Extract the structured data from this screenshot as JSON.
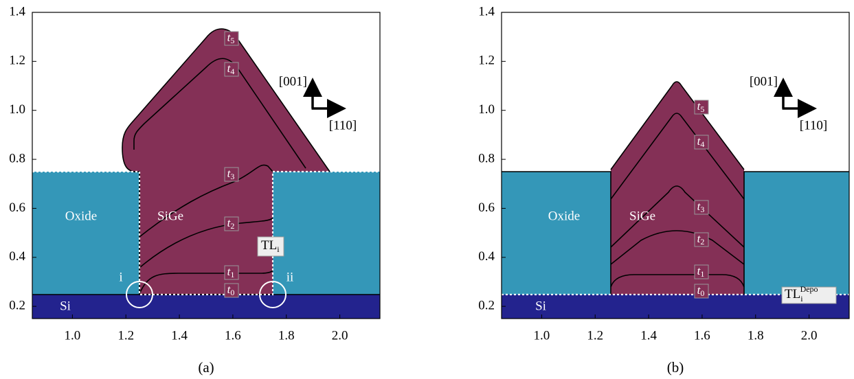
{
  "panels": [
    {
      "caption": "(a)",
      "xlim": [
        0.85,
        2.15
      ],
      "ylim": [
        0.15,
        1.4
      ],
      "xticks": [
        {
          "value": 1,
          "label": "1.0"
        },
        1.2,
        1.4,
        1.6,
        1.8,
        {
          "value": 2,
          "label": "2.0"
        }
      ],
      "yticks": [
        0.2,
        0.4,
        0.6,
        0.8,
        {
          "value": 1,
          "label": "1.0"
        },
        1.2,
        1.4
      ],
      "regions": {
        "oxide": "Oxide",
        "sige": "SiGe",
        "si": "Si"
      },
      "directions": [
        "[001]",
        "[110]"
      ],
      "markers": [
        "i",
        "ii"
      ],
      "interface_label": {
        "base": "TL",
        "sub": "i"
      },
      "time_labels": [
        {
          "base": "t",
          "sub": "0"
        },
        {
          "base": "t",
          "sub": "1"
        },
        {
          "base": "t",
          "sub": "2"
        },
        {
          "base": "t",
          "sub": "3"
        },
        {
          "base": "t",
          "sub": "4"
        },
        {
          "base": "t",
          "sub": "5"
        }
      ]
    },
    {
      "caption": "(b)",
      "xlim": [
        0.85,
        2.15
      ],
      "ylim": [
        0.15,
        1.4
      ],
      "xticks": [
        {
          "value": 1,
          "label": "1.0"
        },
        1.2,
        1.4,
        1.6,
        1.8,
        {
          "value": 2,
          "label": "2.0"
        }
      ],
      "yticks": [
        0.2,
        0.4,
        0.6,
        0.8,
        {
          "value": 1,
          "label": "1.0"
        },
        1.2,
        1.4
      ],
      "regions": {
        "oxide": "Oxide",
        "sige": "SiGe",
        "si": "Si"
      },
      "directions": [
        "[001]",
        "[110]"
      ],
      "interface_label": {
        "base": "TL",
        "sub": "i",
        "sup": "Depo"
      },
      "time_labels": [
        {
          "base": "t",
          "sub": "0"
        },
        {
          "base": "t",
          "sub": "1"
        },
        {
          "base": "t",
          "sub": "2"
        },
        {
          "base": "t",
          "sub": "3"
        },
        {
          "base": "t",
          "sub": "4"
        },
        {
          "base": "t",
          "sub": "5"
        }
      ]
    }
  ]
}
